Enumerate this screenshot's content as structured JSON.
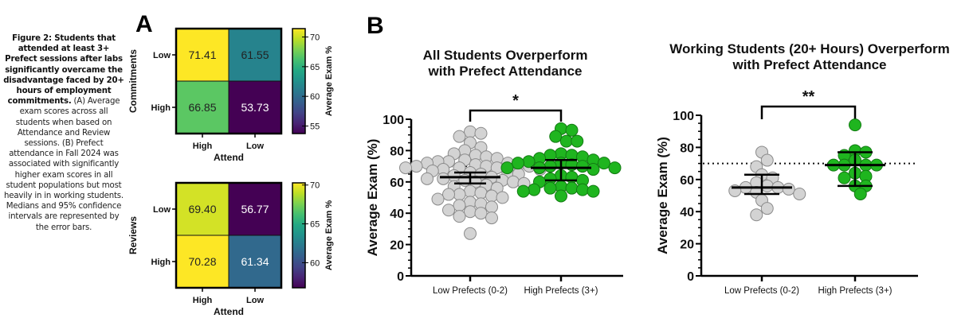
{
  "caption": {
    "bold": "Figure 2: Students that attended at least 3+ Prefect sessions after labs significantly overcame the disadvantage faced by 20+ hours of employment commitments.",
    "normal": " (A) Average exam scores across all students when based on Attendance and Review sessions. (B) Prefect attendance in Fall 2024 was associated with significantly  higher exam scores in all student populations but most heavily in in working students. Medians and 95% confidence intervals are represented by the error bars."
  },
  "panel_labels": {
    "a": "A",
    "b": "B"
  },
  "chart_data": [
    {
      "type": "heatmap",
      "id": "heatmap-commitments",
      "xlabel": "Attend",
      "ylabel": "Commitments",
      "x_categories": [
        "High",
        "Low"
      ],
      "y_categories": [
        "Low",
        "High"
      ],
      "values": [
        [
          71.41,
          61.55
        ],
        [
          66.85,
          53.73
        ]
      ],
      "value_labels": [
        [
          "71.41",
          "61.55"
        ],
        [
          "66.85",
          "53.73"
        ]
      ],
      "colorbar": {
        "label": "Average Exam %",
        "range": [
          53.73,
          71.41
        ],
        "ticks": [
          55,
          60,
          65,
          70
        ],
        "colormap": "viridis"
      }
    },
    {
      "type": "heatmap",
      "id": "heatmap-reviews",
      "xlabel": "Attend",
      "ylabel": "Reviews",
      "x_categories": [
        "High",
        "Low"
      ],
      "y_categories": [
        "Low",
        "High"
      ],
      "values": [
        [
          69.4,
          56.77
        ],
        [
          70.28,
          61.34
        ]
      ],
      "value_labels": [
        [
          "69.40",
          "56.77"
        ],
        [
          "70.28",
          "61.34"
        ]
      ],
      "colorbar": {
        "label": "Average Exam %",
        "range": [
          56.77,
          70.28
        ],
        "ticks": [
          60,
          65,
          70
        ],
        "colormap": "viridis"
      }
    },
    {
      "type": "scatter",
      "id": "all-students",
      "title": [
        "All Students Overperform",
        "with Prefect Attendance"
      ],
      "xlabel": "",
      "ylabel": "Average Exam (%)",
      "ylim": [
        0,
        100
      ],
      "yticks": [
        0,
        20,
        40,
        60,
        80,
        100
      ],
      "reference_line": 70,
      "significance": "*",
      "categories": [
        "Low Prefects (0-2)",
        "High Prefects (3+)"
      ],
      "series": [
        {
          "name": "Low Prefects (0-2)",
          "color": "#d3d3d3",
          "values": [
            92,
            91,
            89,
            85,
            82,
            80,
            78,
            77,
            76,
            75,
            74,
            73,
            73,
            72,
            72,
            71,
            71,
            70,
            70,
            70,
            69,
            69,
            69,
            68,
            68,
            67,
            66,
            66,
            65,
            65,
            64,
            63,
            62,
            62,
            61,
            61,
            60,
            60,
            59,
            58,
            57,
            56,
            54,
            53,
            52,
            52,
            51,
            50,
            49,
            47,
            46,
            45,
            44,
            42,
            41,
            40,
            38,
            37,
            27
          ],
          "median": 63,
          "ci": [
            59,
            66
          ]
        },
        {
          "name": "High Prefects (3+)",
          "color": "#1fb51f",
          "values": [
            94,
            93,
            89,
            86,
            86,
            78,
            77,
            77,
            76,
            75,
            74,
            73,
            72,
            72,
            72,
            71,
            70,
            70,
            69,
            69,
            69,
            68,
            64,
            63,
            62,
            61,
            60,
            57,
            56,
            56,
            55,
            55,
            54,
            54,
            51
          ],
          "median": 69,
          "ci": [
            61,
            74
          ]
        }
      ]
    },
    {
      "type": "scatter",
      "id": "working-students",
      "title": [
        "Working Students (20+ Hours) Overperform",
        "with Prefect Attendance"
      ],
      "xlabel": "",
      "ylabel": "Average Exam (%)",
      "ylim": [
        0,
        100
      ],
      "yticks": [
        0,
        20,
        40,
        60,
        80,
        100
      ],
      "reference_line": 70,
      "significance": "**",
      "categories": [
        "Low Prefects (0-2)",
        "High Prefects (3+)"
      ],
      "series": [
        {
          "name": "Low Prefects (0-2)",
          "color": "#d3d3d3",
          "values": [
            77,
            72,
            68,
            63,
            61,
            58,
            56,
            55,
            55,
            54,
            53,
            52,
            51,
            47,
            42,
            38
          ],
          "median": 55,
          "ci": [
            51,
            63
          ]
        },
        {
          "name": "High Prefects (3+)",
          "color": "#1fb51f",
          "values": [
            94,
            78,
            77,
            75,
            72,
            69,
            69,
            69,
            69,
            64,
            62,
            61,
            56,
            56,
            51
          ],
          "median": 69,
          "ci": [
            56,
            77
          ]
        }
      ]
    }
  ]
}
